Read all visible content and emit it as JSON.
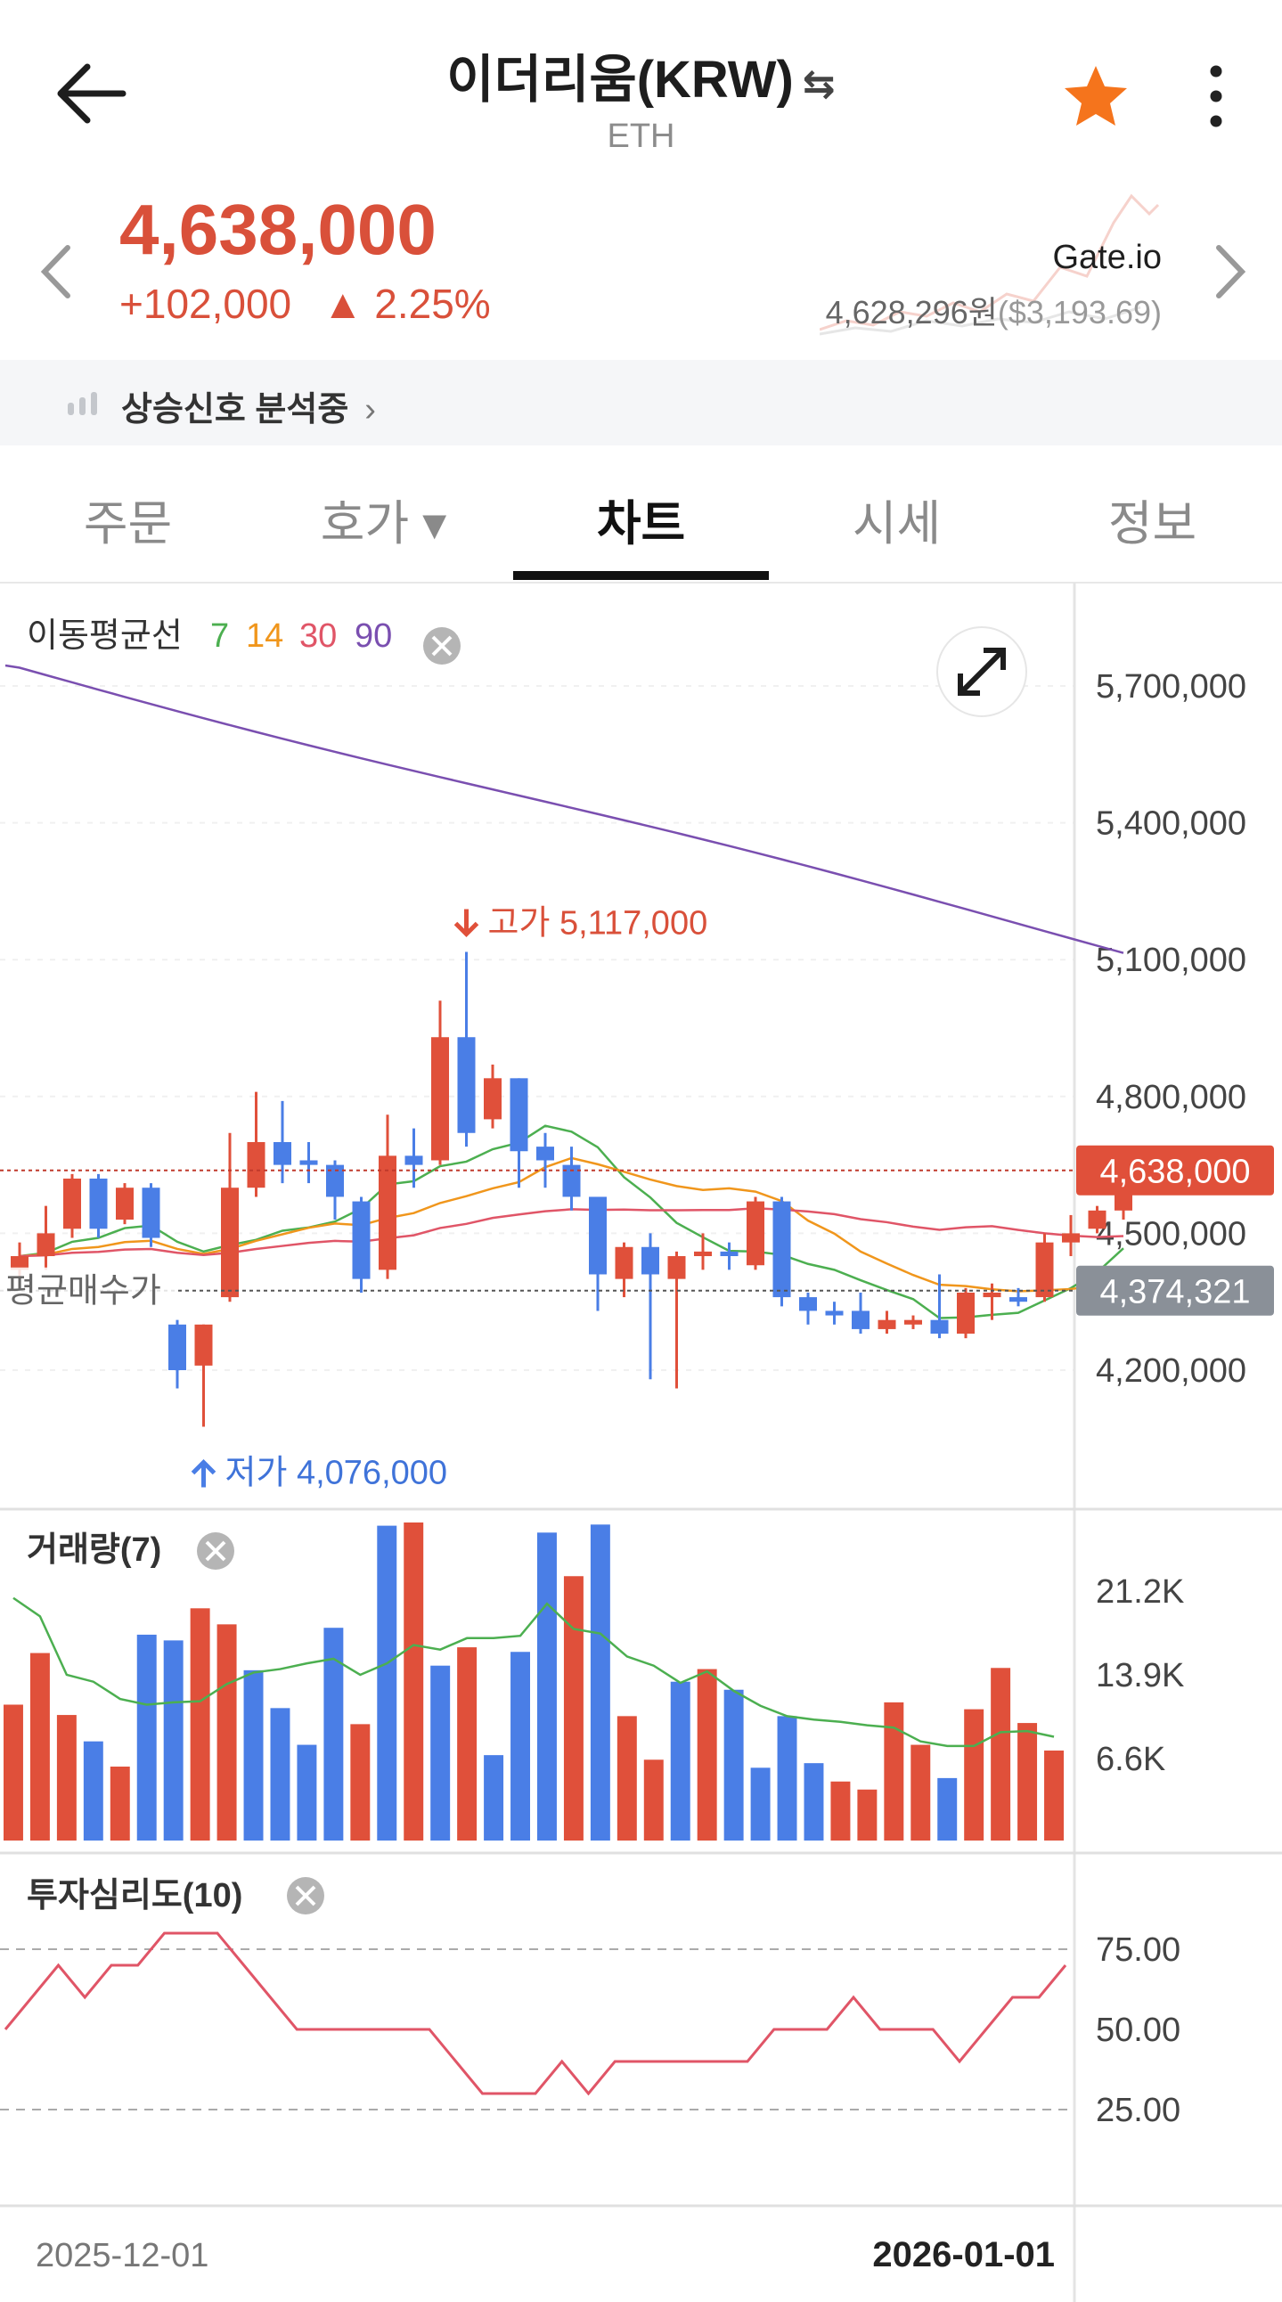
{
  "header": {
    "title": "이더리움(KRW)",
    "swap_glyph": "⇆",
    "subtitle": "ETH",
    "back_icon": "arrow-left-icon",
    "favorite_icon": "star-icon",
    "more_icon": "more-vertical-icon",
    "favorite_color": "#f5741c"
  },
  "price": {
    "current": "4,638,000",
    "change_abs": "+102,000",
    "change_pct": "▲ 2.25%",
    "color_up": "#d9503a",
    "exchange_name": "Gate.io",
    "exchange_price": "4,628,296원",
    "exchange_usd": "($3,193.69)"
  },
  "signal": {
    "text": "상승신호 분석중",
    "chevron": "›"
  },
  "tabs": [
    {
      "label": "주문",
      "active": false
    },
    {
      "label": "호가 ▾",
      "active": false
    },
    {
      "label": "차트",
      "active": true
    },
    {
      "label": "시세",
      "active": false
    },
    {
      "label": "정보",
      "active": false
    }
  ],
  "chart_data": {
    "type": "candlestick",
    "ma_legend": {
      "label": "이동평균선",
      "periods": [
        "7",
        "14",
        "30",
        "90"
      ],
      "colors": [
        "#4caf50",
        "#f0961c",
        "#e05567",
        "#7a4fb0"
      ]
    },
    "price_axis": [
      "5,700,000",
      "5,400,000",
      "5,100,000",
      "4,800,000",
      "4,500,000",
      "4,200,000"
    ],
    "price_axis_values": [
      5700000,
      5400000,
      5100000,
      4800000,
      4500000,
      4200000
    ],
    "current_price_tag": "4,638,000",
    "current_price_value": 4638000,
    "avg_buy_tag": "4,374,321",
    "avg_buy_value": 4374321,
    "avg_buy_label": "평균매수가",
    "high_label": "고가 5,117,000",
    "high_value": 5117000,
    "low_label": "저가 4,076,000",
    "low_value": 4076000,
    "up_color": "#e0503a",
    "down_color": "#4a7ee6",
    "candles": [
      [
        4420000,
        4450000,
        4380000,
        4480000
      ],
      [
        4450000,
        4500000,
        4420000,
        4560000
      ],
      [
        4510000,
        4620000,
        4490000,
        4630000
      ],
      [
        4620000,
        4510000,
        4490000,
        4630000
      ],
      [
        4530000,
        4600000,
        4520000,
        4610000
      ],
      [
        4600000,
        4490000,
        4470000,
        4610000
      ],
      [
        4300000,
        4200000,
        4160000,
        4310000
      ],
      [
        4210000,
        4300000,
        4076000,
        4300000
      ],
      [
        4360000,
        4600000,
        4350000,
        4720000
      ],
      [
        4600000,
        4700000,
        4580000,
        4810000
      ],
      [
        4700000,
        4650000,
        4610000,
        4790000
      ],
      [
        4660000,
        4650000,
        4610000,
        4700000
      ],
      [
        4650000,
        4580000,
        4530000,
        4660000
      ],
      [
        4570000,
        4400000,
        4370000,
        4580000
      ],
      [
        4420000,
        4670000,
        4400000,
        4760000
      ],
      [
        4670000,
        4650000,
        4600000,
        4730000
      ],
      [
        4660000,
        4930000,
        4650000,
        5010000
      ],
      [
        4930000,
        4720000,
        4690000,
        5117000
      ],
      [
        4750000,
        4840000,
        4730000,
        4870000
      ],
      [
        4840000,
        4680000,
        4600000,
        4840000
      ],
      [
        4690000,
        4660000,
        4600000,
        4720000
      ],
      [
        4650000,
        4580000,
        4550000,
        4690000
      ],
      [
        4580000,
        4410000,
        4330000,
        4580000
      ],
      [
        4400000,
        4470000,
        4360000,
        4480000
      ],
      [
        4470000,
        4410000,
        4180000,
        4500000
      ],
      [
        4400000,
        4450000,
        4160000,
        4460000
      ],
      [
        4450000,
        4460000,
        4420000,
        4500000
      ],
      [
        4460000,
        4450000,
        4420000,
        4480000
      ],
      [
        4430000,
        4570000,
        4420000,
        4580000
      ],
      [
        4570000,
        4360000,
        4340000,
        4580000
      ],
      [
        4360000,
        4330000,
        4300000,
        4370000
      ],
      [
        4330000,
        4320000,
        4300000,
        4350000
      ],
      [
        4330000,
        4290000,
        4280000,
        4370000
      ],
      [
        4290000,
        4310000,
        4280000,
        4330000
      ],
      [
        4300000,
        4310000,
        4290000,
        4320000
      ],
      [
        4310000,
        4280000,
        4270000,
        4410000
      ],
      [
        4280000,
        4370000,
        4270000,
        4380000
      ],
      [
        4360000,
        4370000,
        4310000,
        4390000
      ],
      [
        4360000,
        4350000,
        4340000,
        4380000
      ],
      [
        4360000,
        4480000,
        4350000,
        4500000
      ],
      [
        4480000,
        4500000,
        4450000,
        4540000
      ],
      [
        4510000,
        4550000,
        4500000,
        4560000
      ],
      [
        4550000,
        4650000,
        4530000,
        4660000
      ]
    ],
    "volume": {
      "label": "거래량(7)",
      "axis": [
        "21.2K",
        "13.9K",
        "6.6K"
      ],
      "axis_values": [
        21200,
        13900,
        6600
      ],
      "values": [
        11300,
        15800,
        10400,
        8100,
        5900,
        17400,
        16900,
        19700,
        18300,
        14300,
        11000,
        7800,
        18000,
        9600,
        26900,
        27800,
        14700,
        16300,
        6900,
        15900,
        26300,
        22500,
        27000,
        10300,
        6500,
        13300,
        14400,
        12600,
        5800,
        10300,
        6200,
        4600,
        3900,
        11500,
        7800,
        4900,
        10900,
        14500,
        9700,
        7300
      ],
      "ma_values": [
        20600,
        19000,
        13900,
        13300,
        11800,
        11300,
        11500,
        11600,
        13100,
        14100,
        14400,
        14900,
        15300,
        13900,
        14900,
        16500,
        16100,
        17100,
        17100,
        17300,
        20100,
        17900,
        17500,
        15500,
        14700,
        13200,
        14200,
        12500,
        11200,
        10300,
        10000,
        9800,
        9500,
        9300,
        8100,
        7700,
        7700,
        8900,
        9000,
        8500
      ]
    },
    "sentiment": {
      "label": "투자심리도(10)",
      "axis": [
        "75.00",
        "50.00",
        "25.00"
      ],
      "axis_values": [
        75,
        50,
        25
      ],
      "values": [
        50,
        60,
        70,
        60,
        70,
        70,
        80,
        80,
        80,
        70,
        60,
        50,
        50,
        50,
        50,
        50,
        50,
        40,
        30,
        30,
        30,
        40,
        30,
        40,
        40,
        40,
        40,
        40,
        40,
        50,
        50,
        50,
        60,
        50,
        50,
        50,
        40,
        50,
        60,
        60,
        70
      ]
    },
    "x_labels": {
      "start": "2025-12-01",
      "end": "2026-01-01"
    }
  }
}
